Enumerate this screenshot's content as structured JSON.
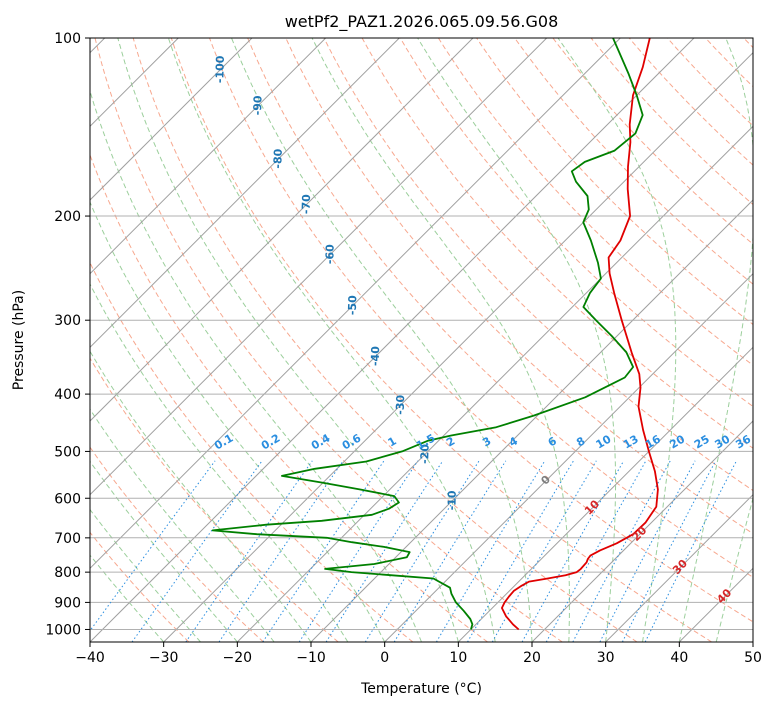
{
  "chart_data": {
    "type": "line",
    "diagram": "Skew-T log-P",
    "title": "wetPf2_PAZ1.2026.065.09.56.G08",
    "xlabel": "Temperature (°C)",
    "ylabel": "Pressure (hPa)",
    "xlim": [
      -40,
      50
    ],
    "ylim": [
      1050,
      100
    ],
    "y_scale": "log",
    "x_ticks": [
      "−40",
      "−30",
      "−20",
      "−10",
      "0",
      "10",
      "20",
      "30",
      "40",
      "50"
    ],
    "y_ticks": [
      {
        "p": 100,
        "label": "100"
      },
      {
        "p": 200,
        "label": "200"
      },
      {
        "p": 300,
        "label": "300"
      },
      {
        "p": 400,
        "label": "400"
      },
      {
        "p": 500,
        "label": "500"
      },
      {
        "p": 600,
        "label": "600"
      },
      {
        "p": 700,
        "label": "700"
      },
      {
        "p": 800,
        "label": "800"
      },
      {
        "p": 900,
        "label": "900"
      },
      {
        "p": 1000,
        "label": "1000"
      }
    ],
    "grid": true,
    "colors": {
      "temperature": "#e00000",
      "dewpoint": "#008000",
      "isotherm": "#a0a0a0",
      "dry_adiabat": "#f7a88f",
      "moist_adiabat": "#9ccf9c",
      "mixing_ratio": "#2a8ee0",
      "dry_adiabat_label": "#d62728",
      "isotherm_label": "#1f77b4"
    },
    "series": [
      {
        "key": "temperature",
        "points": [
          [
            1000,
            16.5
          ],
          [
            980,
            15.0
          ],
          [
            950,
            13.0
          ],
          [
            920,
            11.3
          ],
          [
            900,
            10.9
          ],
          [
            880,
            10.7
          ],
          [
            860,
            10.6
          ],
          [
            845,
            10.9
          ],
          [
            830,
            11.4
          ],
          [
            820,
            13.5
          ],
          [
            810,
            15.5
          ],
          [
            800,
            16.6
          ],
          [
            790,
            16.7
          ],
          [
            770,
            16.6
          ],
          [
            760,
            16.3
          ],
          [
            750,
            16.2
          ],
          [
            735,
            16.8
          ],
          [
            715,
            18.1
          ],
          [
            690,
            19.1
          ],
          [
            660,
            19.2
          ],
          [
            620,
            18.5
          ],
          [
            580,
            16.4
          ],
          [
            540,
            13.5
          ],
          [
            500,
            10.0
          ],
          [
            460,
            6.3
          ],
          [
            420,
            2.5
          ],
          [
            390,
            0.2
          ],
          [
            370,
            -1.8
          ],
          [
            340,
            -5.8
          ],
          [
            300,
            -11.5
          ],
          [
            270,
            -16.2
          ],
          [
            250,
            -19.5
          ],
          [
            235,
            -21.8
          ],
          [
            220,
            -22.5
          ],
          [
            200,
            -24.5
          ],
          [
            180,
            -28.5
          ],
          [
            165,
            -31.5
          ],
          [
            150,
            -34.5
          ],
          [
            140,
            -37.0
          ],
          [
            125,
            -40.5
          ],
          [
            112,
            -43.0
          ],
          [
            100,
            -46.0
          ]
        ]
      },
      {
        "key": "dewpoint",
        "points": [
          [
            1000,
            10.0
          ],
          [
            980,
            9.5
          ],
          [
            960,
            8.5
          ],
          [
            930,
            6.5
          ],
          [
            900,
            4.3
          ],
          [
            870,
            2.5
          ],
          [
            850,
            1.5
          ],
          [
            820,
            -2.0
          ],
          [
            810,
            -8.0
          ],
          [
            800,
            -14.0
          ],
          [
            790,
            -18.0
          ],
          [
            775,
            -12.0
          ],
          [
            755,
            -8.5
          ],
          [
            740,
            -8.8
          ],
          [
            725,
            -13.0
          ],
          [
            712,
            -18.0
          ],
          [
            700,
            -22.0
          ],
          [
            690,
            -32.0
          ],
          [
            680,
            -38.5
          ],
          [
            665,
            -32.0
          ],
          [
            655,
            -25.0
          ],
          [
            640,
            -19.0
          ],
          [
            625,
            -17.5
          ],
          [
            610,
            -17.0
          ],
          [
            595,
            -18.5
          ],
          [
            580,
            -24.0
          ],
          [
            565,
            -30.0
          ],
          [
            550,
            -36.5
          ],
          [
            535,
            -33.0
          ],
          [
            520,
            -27.0
          ],
          [
            500,
            -23.5
          ],
          [
            480,
            -21.5
          ],
          [
            470,
            -19.0
          ],
          [
            455,
            -14.0
          ],
          [
            435,
            -10.5
          ],
          [
            405,
            -6.0
          ],
          [
            375,
            -3.3
          ],
          [
            360,
            -3.6
          ],
          [
            340,
            -6.5
          ],
          [
            320,
            -10.5
          ],
          [
            300,
            -15.0
          ],
          [
            285,
            -18.5
          ],
          [
            270,
            -19.5
          ],
          [
            255,
            -20.0
          ],
          [
            240,
            -22.5
          ],
          [
            220,
            -26.5
          ],
          [
            205,
            -30.0
          ],
          [
            195,
            -31.0
          ],
          [
            185,
            -33.0
          ],
          [
            175,
            -36.5
          ],
          [
            168,
            -38.5
          ],
          [
            162,
            -38.0
          ],
          [
            155,
            -35.5
          ],
          [
            145,
            -35.0
          ],
          [
            135,
            -36.5
          ],
          [
            125,
            -40.0
          ],
          [
            115,
            -44.0
          ],
          [
            100,
            -51.0
          ]
        ]
      }
    ],
    "isotherm_labels": [
      {
        "t": "-100",
        "p": 113
      },
      {
        "t": "-90",
        "p": 130
      },
      {
        "t": "-80",
        "p": 160
      },
      {
        "t": "-70",
        "p": 191
      },
      {
        "t": "-60",
        "p": 232
      },
      {
        "t": "-50",
        "p": 283
      },
      {
        "t": "-40",
        "p": 345
      },
      {
        "t": "-30",
        "p": 417
      },
      {
        "t": "-20",
        "p": 505
      },
      {
        "t": "-10",
        "p": 605
      }
    ],
    "mixing_ratio_labels": [
      "0.1",
      "0.2",
      "0.4",
      "0.6",
      "1",
      "1.5",
      "2",
      "3",
      "4",
      "6",
      "8",
      "10",
      "13",
      "16",
      "20",
      "25",
      "30",
      "36"
    ],
    "mixing_ratio_label_pressure": 500,
    "dry_adiabat_labels": [
      {
        "label": "0",
        "p": 560,
        "color": "#7f7f7f"
      },
      {
        "label": "10",
        "p": 623,
        "color": "#d62728"
      },
      {
        "label": "20",
        "p": 690,
        "color": "#d62728"
      },
      {
        "label": "30",
        "p": 785,
        "color": "#d62728"
      },
      {
        "label": "40",
        "p": 880,
        "color": "#d62728"
      }
    ]
  }
}
